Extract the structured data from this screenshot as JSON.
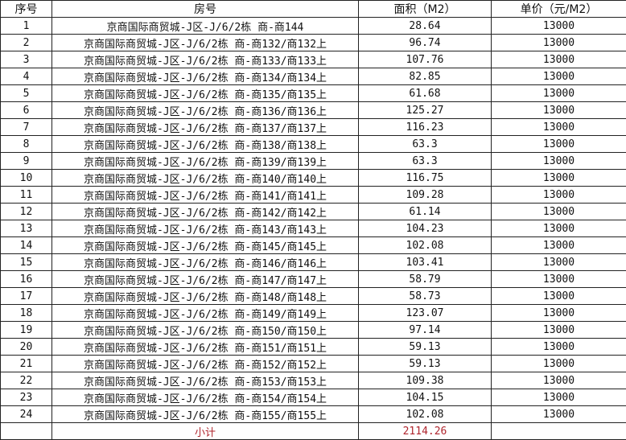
{
  "headers": [
    "序号",
    "房号",
    "面积（M2）",
    "单价（元/M2）"
  ],
  "rows": [
    {
      "no": "1",
      "room": "京商国际商贸城-J区-J/6/2栋 商-商144",
      "area": "28.64",
      "price": "13000"
    },
    {
      "no": "2",
      "room": "京商国际商贸城-J区-J/6/2栋 商-商132/商132上",
      "area": "96.74",
      "price": "13000"
    },
    {
      "no": "3",
      "room": "京商国际商贸城-J区-J/6/2栋 商-商133/商133上",
      "area": "107.76",
      "price": "13000"
    },
    {
      "no": "4",
      "room": "京商国际商贸城-J区-J/6/2栋 商-商134/商134上",
      "area": "82.85",
      "price": "13000"
    },
    {
      "no": "5",
      "room": "京商国际商贸城-J区-J/6/2栋 商-商135/商135上",
      "area": "61.68",
      "price": "13000"
    },
    {
      "no": "6",
      "room": "京商国际商贸城-J区-J/6/2栋 商-商136/商136上",
      "area": "125.27",
      "price": "13000"
    },
    {
      "no": "7",
      "room": "京商国际商贸城-J区-J/6/2栋 商-商137/商137上",
      "area": "116.23",
      "price": "13000"
    },
    {
      "no": "8",
      "room": "京商国际商贸城-J区-J/6/2栋 商-商138/商138上",
      "area": "63.3",
      "price": "13000"
    },
    {
      "no": "9",
      "room": "京商国际商贸城-J区-J/6/2栋 商-商139/商139上",
      "area": "63.3",
      "price": "13000"
    },
    {
      "no": "10",
      "room": "京商国际商贸城-J区-J/6/2栋 商-商140/商140上",
      "area": "116.75",
      "price": "13000"
    },
    {
      "no": "11",
      "room": "京商国际商贸城-J区-J/6/2栋 商-商141/商141上",
      "area": "109.28",
      "price": "13000"
    },
    {
      "no": "12",
      "room": "京商国际商贸城-J区-J/6/2栋 商-商142/商142上",
      "area": "61.14",
      "price": "13000"
    },
    {
      "no": "13",
      "room": "京商国际商贸城-J区-J/6/2栋 商-商143/商143上",
      "area": "104.23",
      "price": "13000"
    },
    {
      "no": "14",
      "room": "京商国际商贸城-J区-J/6/2栋 商-商145/商145上",
      "area": "102.08",
      "price": "13000"
    },
    {
      "no": "15",
      "room": "京商国际商贸城-J区-J/6/2栋 商-商146/商146上",
      "area": "103.41",
      "price": "13000"
    },
    {
      "no": "16",
      "room": "京商国际商贸城-J区-J/6/2栋 商-商147/商147上",
      "area": "58.79",
      "price": "13000"
    },
    {
      "no": "17",
      "room": "京商国际商贸城-J区-J/6/2栋 商-商148/商148上",
      "area": "58.73",
      "price": "13000"
    },
    {
      "no": "18",
      "room": "京商国际商贸城-J区-J/6/2栋 商-商149/商149上",
      "area": "123.07",
      "price": "13000"
    },
    {
      "no": "19",
      "room": "京商国际商贸城-J区-J/6/2栋 商-商150/商150上",
      "area": "97.14",
      "price": "13000"
    },
    {
      "no": "20",
      "room": "京商国际商贸城-J区-J/6/2栋 商-商151/商151上",
      "area": "59.13",
      "price": "13000"
    },
    {
      "no": "21",
      "room": "京商国际商贸城-J区-J/6/2栋 商-商152/商152上",
      "area": "59.13",
      "price": "13000"
    },
    {
      "no": "22",
      "room": "京商国际商贸城-J区-J/6/2栋 商-商153/商153上",
      "area": "109.38",
      "price": "13000"
    },
    {
      "no": "23",
      "room": "京商国际商贸城-J区-J/6/2栋 商-商154/商154上",
      "area": "104.15",
      "price": "13000"
    },
    {
      "no": "24",
      "room": "京商国际商贸城-J区-J/6/2栋 商-商155/商155上",
      "area": "102.08",
      "price": "13000"
    }
  ],
  "subtotal": {
    "label": "小计",
    "area": "2114.26"
  },
  "colors": {
    "subtotal_text": "#b0262e",
    "border": "#222222"
  }
}
